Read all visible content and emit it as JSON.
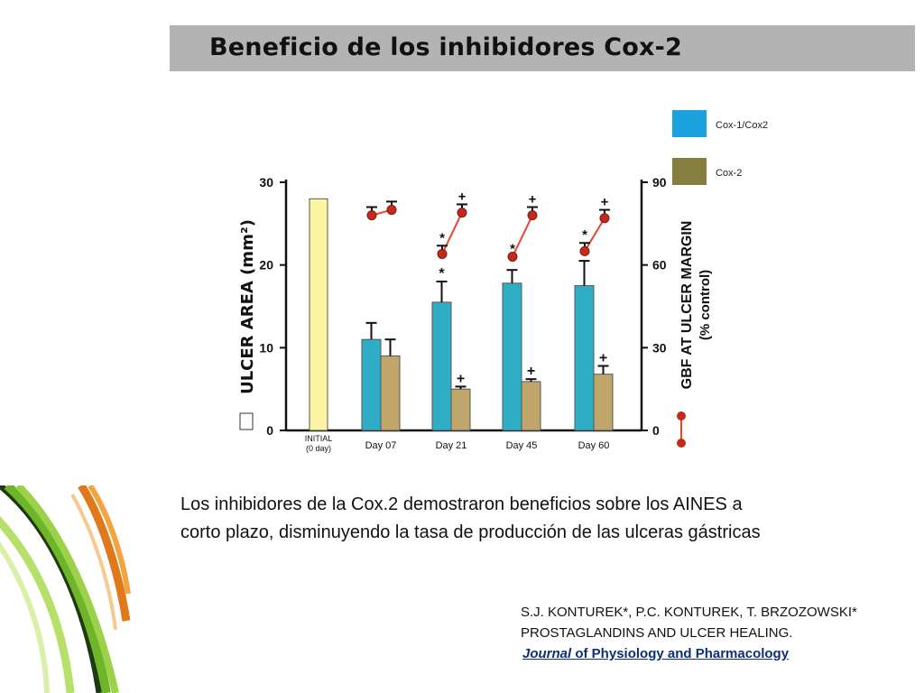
{
  "slide": {
    "title": "Beneficio de los inhibidores Cox-2",
    "description_lines": [
      "Los inhibidores de la Cox.2 demostraron beneficios sobre los AINES  a",
      "corto plazo, disminuyendo la tasa de producción de las ulceras gástricas"
    ],
    "citation": {
      "authors": "S.J. KONTUREK*, P.C. KONTUREK, T. BRZOZOWSKI*",
      "article": "PROSTAGLANDINS AND ULCER HEALING.",
      "journal_italic": "Journal",
      "journal_rest": " of Physiology and Pharmacology"
    },
    "legend": [
      {
        "label": "Cox-1/Cox2",
        "color": "#1ba1dd"
      },
      {
        "label": "Cox-2",
        "color": "#857e3e"
      }
    ]
  },
  "chart_data": {
    "type": "bar",
    "categories": [
      "INITIAL (0 day)",
      "Day 07",
      "Day 21",
      "Day 45",
      "Day 60"
    ],
    "category_labels": [
      [
        "INITIAL",
        "(0 day)"
      ],
      [
        "Day 07"
      ],
      [
        "Day 21"
      ],
      [
        "Day 45"
      ],
      [
        "Day 60"
      ]
    ],
    "ylabel": "ULCER AREA (mm²)",
    "ylim": [
      0,
      30
    ],
    "yticks": [
      0,
      10,
      20,
      30
    ],
    "y2label": [
      "GBF AT ULCER MARGIN",
      "(% control)"
    ],
    "y2lim": [
      0,
      90
    ],
    "y2ticks": [
      0,
      30,
      60,
      90
    ],
    "initial_bar": {
      "category": "INITIAL (0 day)",
      "value": 28,
      "color": "#fbf5a3"
    },
    "series": [
      {
        "color": "#2fadc7",
        "values": [
          null,
          11,
          15.5,
          17.8,
          17.5
        ],
        "errors": [
          null,
          2,
          2.5,
          1.6,
          3
        ],
        "markers": [
          "",
          "",
          "*",
          "*",
          "*"
        ]
      },
      {
        "color": "#c1a66b",
        "values": [
          null,
          9,
          5,
          5.9,
          6.8
        ],
        "errors": [
          null,
          2,
          0.3,
          0.3,
          1
        ],
        "markers": [
          "",
          "",
          "+",
          "+",
          "+"
        ]
      }
    ],
    "gbf_pairs": [
      {
        "category": "Day 07",
        "values": [
          78,
          80
        ],
        "errors": [
          3,
          3
        ],
        "markers": [
          "",
          ""
        ]
      },
      {
        "category": "Day 21",
        "values": [
          64,
          79
        ],
        "errors": [
          3,
          3
        ],
        "markers": [
          "*",
          "+"
        ]
      },
      {
        "category": "Day 45",
        "values": [
          63,
          78
        ],
        "errors": [
          0,
          3
        ],
        "markers": [
          "*",
          "+"
        ]
      },
      {
        "category": "Day 60",
        "values": [
          65,
          77
        ],
        "errors": [
          3,
          3
        ],
        "markers": [
          "*",
          "+"
        ]
      }
    ],
    "gbf_line_color": "#e8442a",
    "gbf_marker_color": "#c8281a"
  }
}
